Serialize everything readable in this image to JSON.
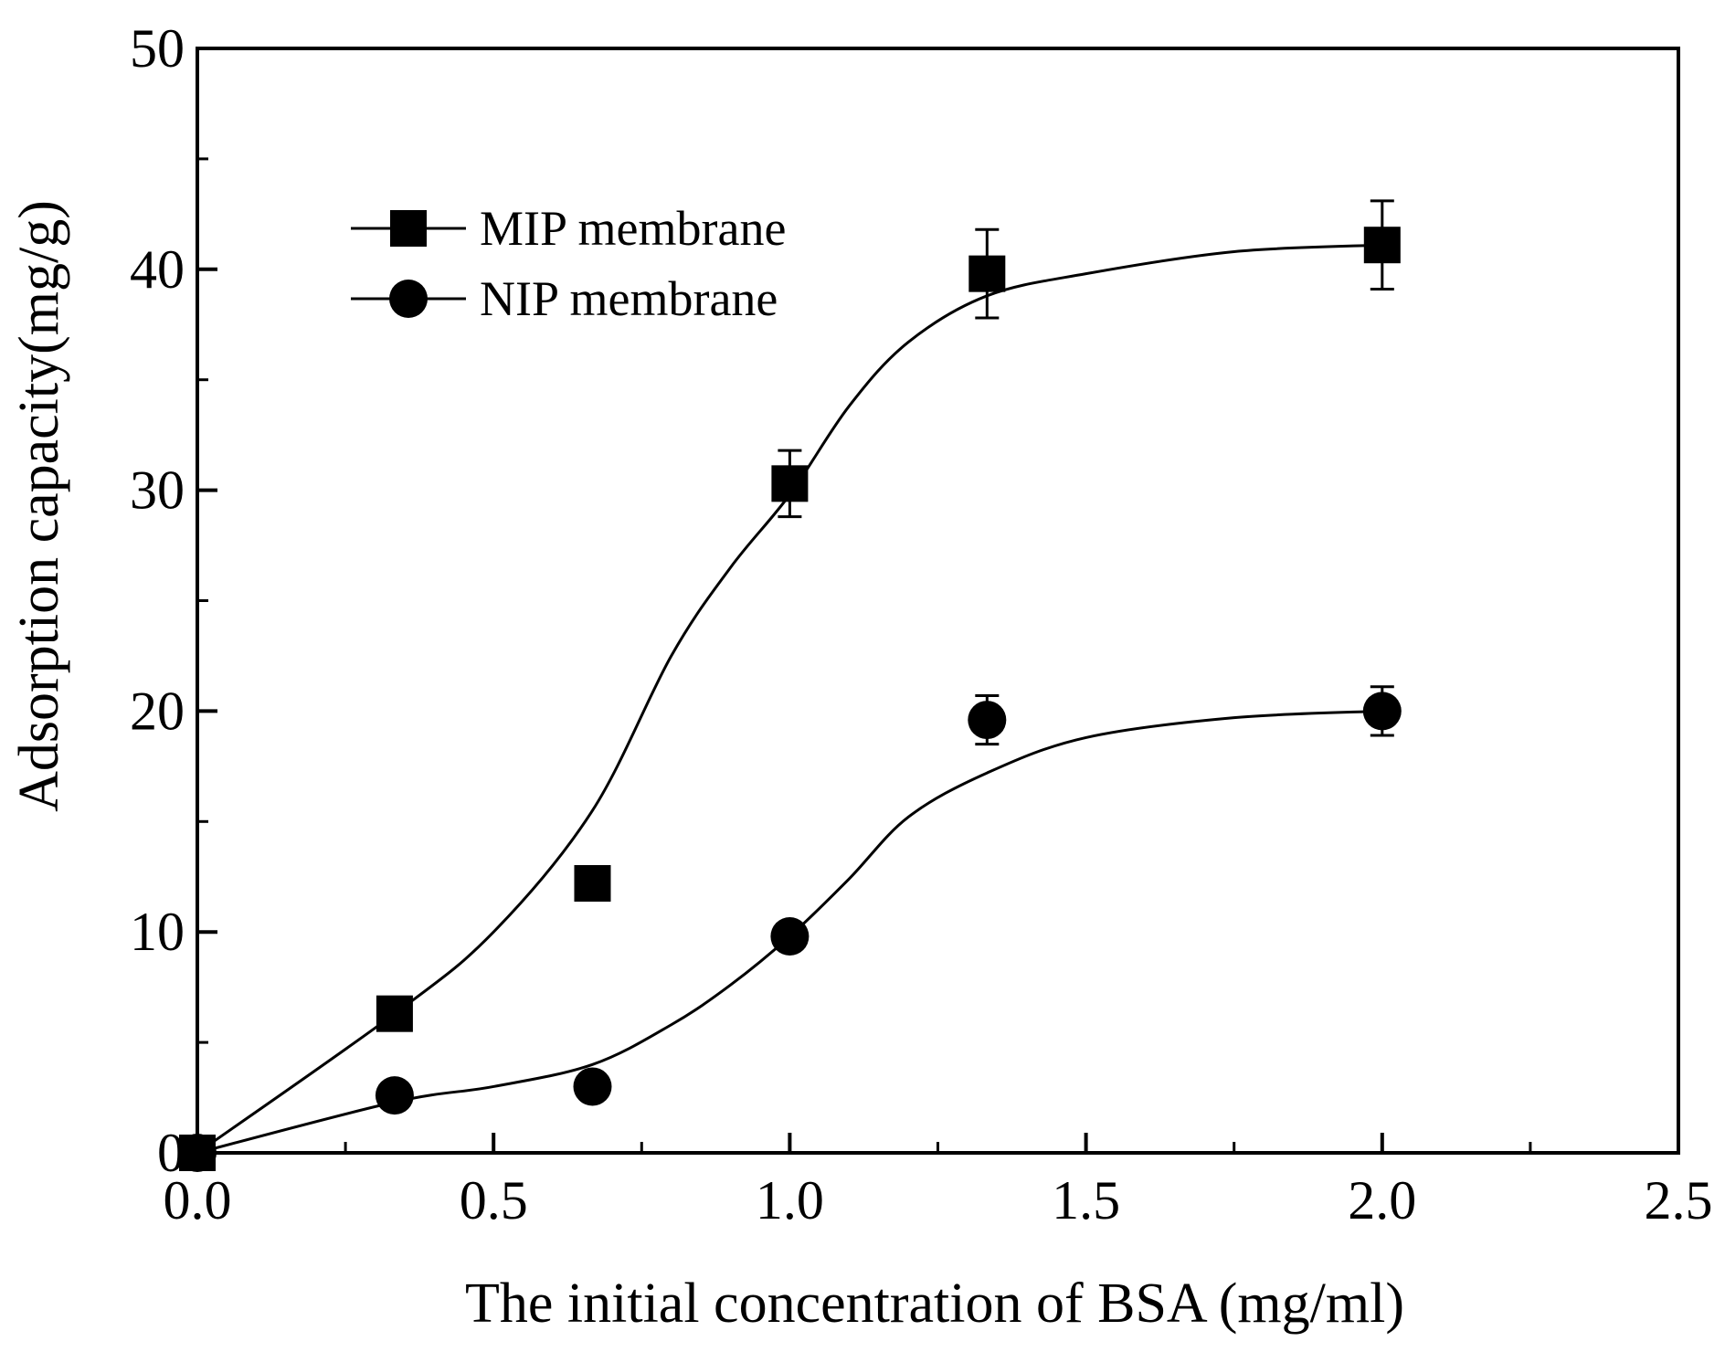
{
  "chart_data": {
    "type": "scatter",
    "title": "",
    "xlabel": "The initial concentration of BSA (mg/ml)",
    "ylabel": "Adsorption capacity(mg/g)",
    "xlim": [
      0.0,
      2.5
    ],
    "ylim": [
      0,
      50
    ],
    "x_ticks": [
      "0.0",
      "0.5",
      "1.0",
      "1.5",
      "2.0",
      "2.5"
    ],
    "x_tick_values": [
      0.0,
      0.5,
      1.0,
      1.5,
      2.0,
      2.5
    ],
    "y_ticks": [
      "0",
      "10",
      "20",
      "30",
      "40",
      "50"
    ],
    "y_tick_values": [
      0,
      10,
      20,
      30,
      40,
      50
    ],
    "grid": false,
    "legend_position": "top-left",
    "series": [
      {
        "name": "MIP membrane",
        "marker": "square",
        "x": [
          0.0,
          0.333,
          0.667,
          1.0,
          1.333,
          2.0
        ],
        "y": [
          0.0,
          6.3,
          12.2,
          30.3,
          39.8,
          41.1
        ],
        "error": [
          0,
          0,
          0,
          1.5,
          2.0,
          2.0
        ],
        "fit_x": [
          0.0,
          0.333,
          0.5,
          0.667,
          0.8,
          0.9,
          1.0,
          1.1,
          1.2,
          1.333,
          1.5,
          1.75,
          2.0
        ],
        "fit_y": [
          0.0,
          6.3,
          10.0,
          15.5,
          22.5,
          26.5,
          29.8,
          33.8,
          36.7,
          38.8,
          39.8,
          40.8,
          41.1
        ]
      },
      {
        "name": "NIP membrane",
        "marker": "circle",
        "x": [
          0.0,
          0.333,
          0.667,
          1.0,
          1.333,
          2.0
        ],
        "y": [
          0.0,
          2.6,
          3.0,
          9.8,
          19.6,
          20.0
        ],
        "error": [
          0,
          0,
          0,
          0,
          1.1,
          1.1
        ],
        "fit_x": [
          0.0,
          0.333,
          0.5,
          0.667,
          0.8,
          0.9,
          1.0,
          1.1,
          1.2,
          1.333,
          1.5,
          1.75,
          2.0
        ],
        "fit_y": [
          0.0,
          2.3,
          3.0,
          4.0,
          5.8,
          7.6,
          9.8,
          12.4,
          15.2,
          17.2,
          18.8,
          19.7,
          20.0
        ]
      }
    ]
  }
}
